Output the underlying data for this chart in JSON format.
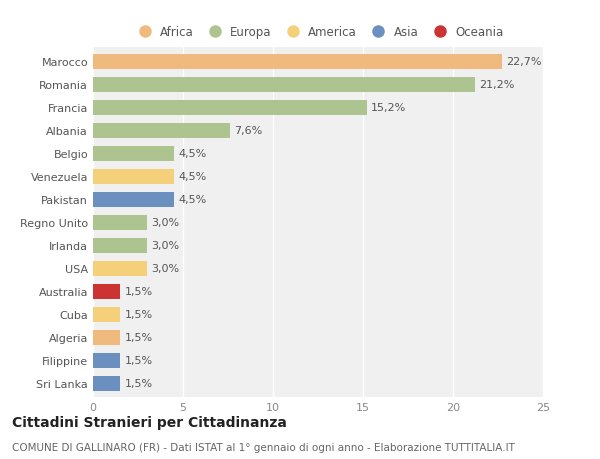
{
  "categories": [
    "Marocco",
    "Romania",
    "Francia",
    "Albania",
    "Belgio",
    "Venezuela",
    "Pakistan",
    "Regno Unito",
    "Irlanda",
    "USA",
    "Australia",
    "Cuba",
    "Algeria",
    "Filippine",
    "Sri Lanka"
  ],
  "values": [
    22.7,
    21.2,
    15.2,
    7.6,
    4.5,
    4.5,
    4.5,
    3.0,
    3.0,
    3.0,
    1.5,
    1.5,
    1.5,
    1.5,
    1.5
  ],
  "labels": [
    "22,7%",
    "21,2%",
    "15,2%",
    "7,6%",
    "4,5%",
    "4,5%",
    "4,5%",
    "3,0%",
    "3,0%",
    "3,0%",
    "1,5%",
    "1,5%",
    "1,5%",
    "1,5%",
    "1,5%"
  ],
  "colors": [
    "#f0b97d",
    "#adc491",
    "#adc491",
    "#adc491",
    "#adc491",
    "#f5d07a",
    "#6b8fbf",
    "#adc491",
    "#adc491",
    "#f5d07a",
    "#cc3333",
    "#f5d07a",
    "#f0b97d",
    "#6b8fbf",
    "#6b8fbf"
  ],
  "continents": [
    "Africa",
    "Europa",
    "America",
    "Asia",
    "Oceania"
  ],
  "legend_colors": [
    "#f0b97d",
    "#adc491",
    "#f5d07a",
    "#6b8fbf",
    "#cc3333"
  ],
  "title": "Cittadini Stranieri per Cittadinanza",
  "subtitle": "COMUNE DI GALLINARO (FR) - Dati ISTAT al 1° gennaio di ogni anno - Elaborazione TUTTITALIA.IT",
  "xlim": [
    0,
    25
  ],
  "xticks": [
    0,
    5,
    10,
    15,
    20,
    25
  ],
  "background_color": "#ffffff",
  "plot_background": "#f0f0f0",
  "grid_color": "#ffffff",
  "bar_height": 0.65,
  "title_fontsize": 10,
  "subtitle_fontsize": 7.5,
  "ytick_fontsize": 8,
  "xtick_fontsize": 8,
  "label_fontsize": 8,
  "legend_fontsize": 8.5
}
